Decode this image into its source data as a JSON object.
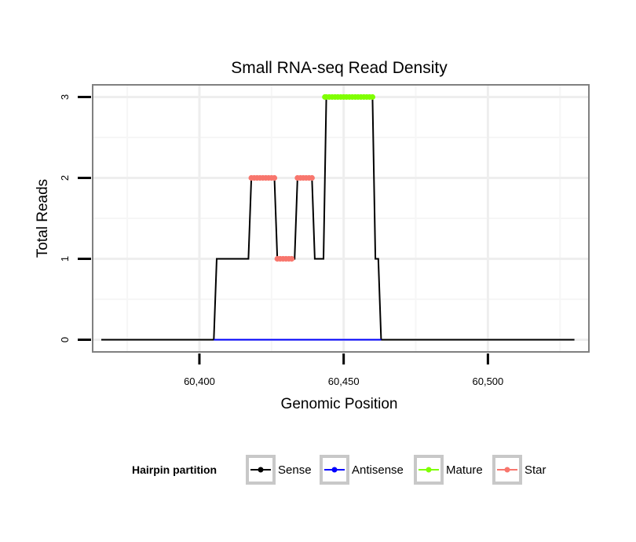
{
  "chart_data": {
    "type": "line",
    "title": "Small RNA-seq Read Density",
    "xlabel": "Genomic Position",
    "ylabel": "Total Reads",
    "xlim": [
      60363,
      60535
    ],
    "ylim": [
      -0.15,
      3.15
    ],
    "x_ticks": [
      {
        "value": 60400,
        "label": "60,400"
      },
      {
        "value": 60450,
        "label": "60,450"
      },
      {
        "value": 60500,
        "label": "60,500"
      }
    ],
    "y_ticks": [
      {
        "value": 0,
        "label": "0"
      },
      {
        "value": 1,
        "label": "1"
      },
      {
        "value": 2,
        "label": "2"
      },
      {
        "value": 3,
        "label": "3"
      }
    ],
    "grid": true,
    "legend": {
      "title": "Hairpin partition",
      "position": "bottom",
      "entries": [
        "Sense",
        "Antisense",
        "Mature",
        "Star"
      ]
    },
    "series": [
      {
        "name": "Sense",
        "color": "#000000",
        "style": "line",
        "x": [
          60366,
          60405,
          60406,
          60412,
          60417,
          60418,
          60421,
          60422,
          60425,
          60426,
          60427,
          60428,
          60429,
          60430,
          60431,
          60432,
          60433,
          60434,
          60435,
          60436,
          60438,
          60439,
          60440,
          60441,
          60443,
          60444,
          60446,
          60448,
          60450,
          60452,
          60454,
          60456,
          60458,
          60460,
          60461,
          60462,
          60463,
          60464,
          60530
        ],
        "y": [
          0,
          0,
          1,
          1,
          1,
          2,
          2,
          2,
          2,
          2,
          1,
          1,
          1,
          1,
          1,
          1,
          1,
          2,
          2,
          2,
          2,
          2,
          1,
          1,
          1,
          3,
          3,
          3,
          3,
          3,
          3,
          3,
          3,
          3,
          1,
          1,
          0,
          0,
          0
        ]
      },
      {
        "name": "Antisense",
        "color": "#0000ff",
        "style": "line",
        "x": [
          60405,
          60463
        ],
        "y": [
          0,
          0
        ]
      },
      {
        "name": "Mature",
        "color": "#7fff00",
        "style": "points",
        "x": [
          60443.5,
          60444,
          60445,
          60446,
          60447,
          60448,
          60449,
          60450,
          60451,
          60452,
          60453,
          60454,
          60455,
          60456,
          60457,
          60458,
          60459,
          60460
        ],
        "y": [
          3,
          3,
          3,
          3,
          3,
          3,
          3,
          3,
          3,
          3,
          3,
          3,
          3,
          3,
          3,
          3,
          3,
          3
        ]
      },
      {
        "name": "Star",
        "color": "#f8766d",
        "style": "points",
        "x": [
          60418,
          60419,
          60420,
          60421,
          60422,
          60423,
          60424,
          60425,
          60426,
          60427,
          60428,
          60429,
          60430,
          60431,
          60432,
          60434,
          60435,
          60436,
          60437,
          60438,
          60439
        ],
        "y": [
          2,
          2,
          2,
          2,
          2,
          2,
          2,
          2,
          2,
          1,
          1,
          1,
          1,
          1,
          1,
          2,
          2,
          2,
          2,
          2,
          2
        ]
      }
    ]
  }
}
